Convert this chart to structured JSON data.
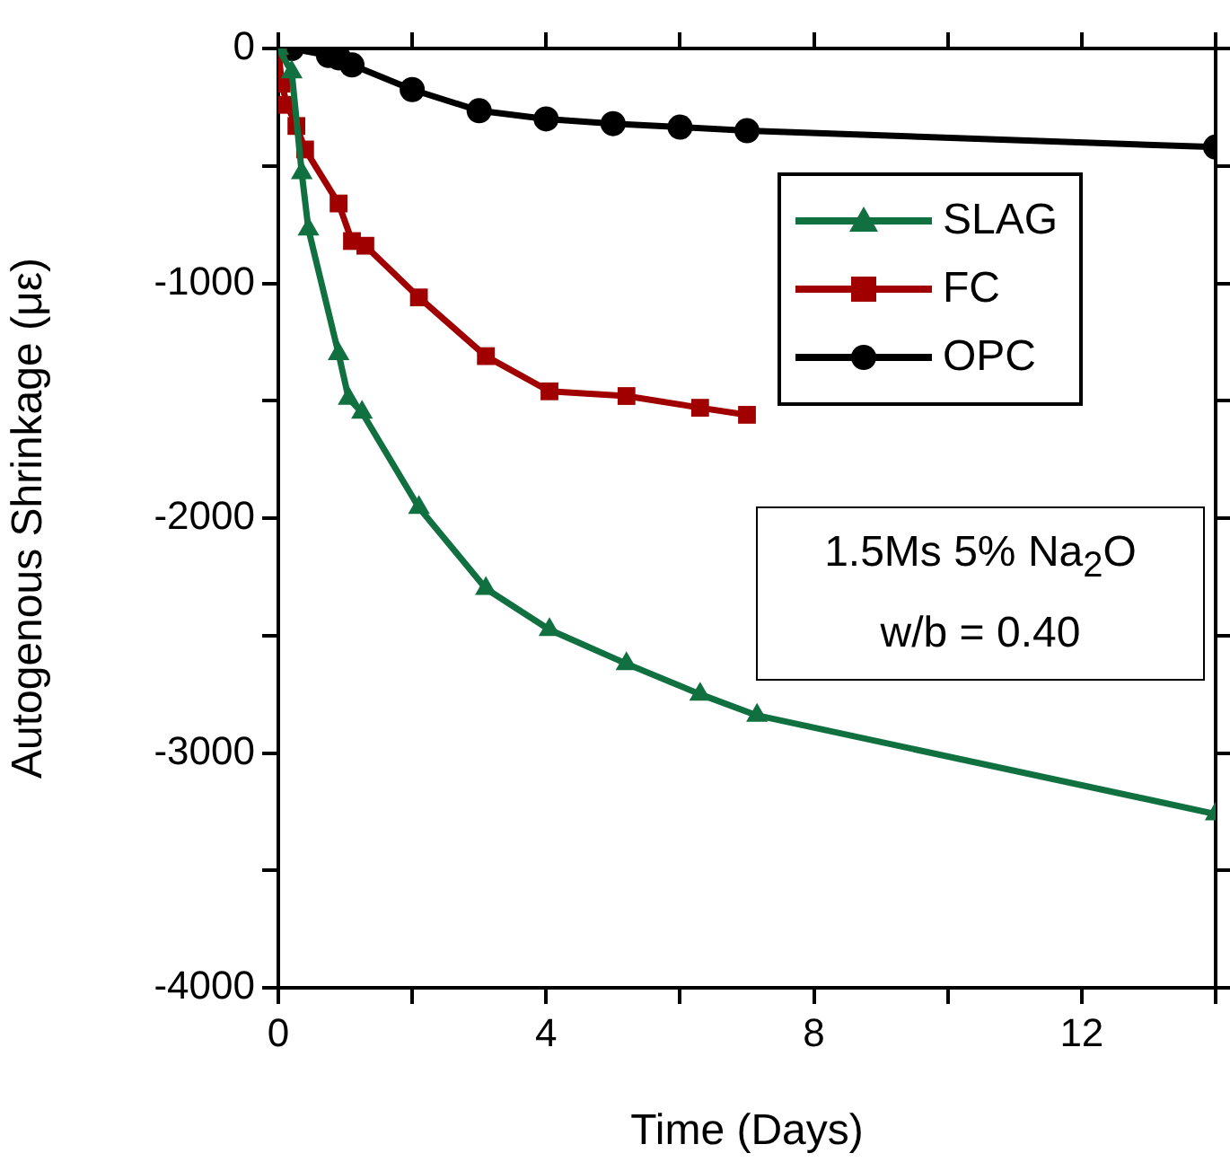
{
  "chart_data": {
    "type": "line",
    "xlabel": "Time (Days)",
    "ylabel": "Autogenous Shrinkage (με)",
    "xlim": [
      0,
      14
    ],
    "ylim": [
      -4000,
      0
    ],
    "xticks": [
      0,
      {
        "value": 2,
        "label": null
      },
      4,
      {
        "value": 6,
        "label": null
      },
      8,
      {
        "value": 10,
        "label": null
      },
      12,
      {
        "value": 14,
        "label": null
      }
    ],
    "yticks": [
      {
        "value": -4000,
        "label": "-4000"
      },
      {
        "value": -3500,
        "label": null
      },
      {
        "value": -3000,
        "label": "-3000"
      },
      {
        "value": -2500,
        "label": null
      },
      {
        "value": -2000,
        "label": "-2000"
      },
      {
        "value": -1500,
        "label": null
      },
      {
        "value": -1000,
        "label": "-1000"
      },
      {
        "value": -500,
        "label": null
      },
      0
    ],
    "legend": "top right",
    "grid": false,
    "annotations": [
      "1.5Ms 5% Na$_{2}$O",
      "w/b = 0.40"
    ],
    "series": [
      {
        "name": "SLAG",
        "color": "#117040",
        "marker": "triangle",
        "x": [
          0,
          0.2,
          0.35,
          0.45,
          0.9,
          1.05,
          1.25,
          2.1,
          3.1,
          4.05,
          5.2,
          6.3,
          7.15,
          14
        ],
        "values": [
          0,
          -100,
          -530,
          -770,
          -1300,
          -1490,
          -1550,
          -1955,
          -2300,
          -2475,
          -2620,
          -2750,
          -2840,
          -3260
        ]
      },
      {
        "name": "FC",
        "color": "#a00000",
        "marker": "square",
        "x": [
          0,
          0.05,
          0.13,
          0.27,
          0.4,
          0.9,
          1.1,
          1.3,
          2.1,
          3.1,
          4.05,
          5.2,
          6.3,
          7.0
        ],
        "values": [
          0,
          -150,
          -240,
          -330,
          -430,
          -660,
          -820,
          -840,
          -1060,
          -1310,
          -1460,
          -1480,
          -1530,
          -1560
        ]
      },
      {
        "name": "OPC",
        "color": "#000000",
        "marker": "circle",
        "x": [
          0,
          0.2,
          0.75,
          0.9,
          1.1,
          2,
          3,
          4,
          5,
          6,
          7,
          14
        ],
        "values": [
          0,
          0,
          -30,
          -40,
          -70,
          -175,
          -265,
          -300,
          -320,
          -335,
          -350,
          -420
        ]
      }
    ]
  }
}
